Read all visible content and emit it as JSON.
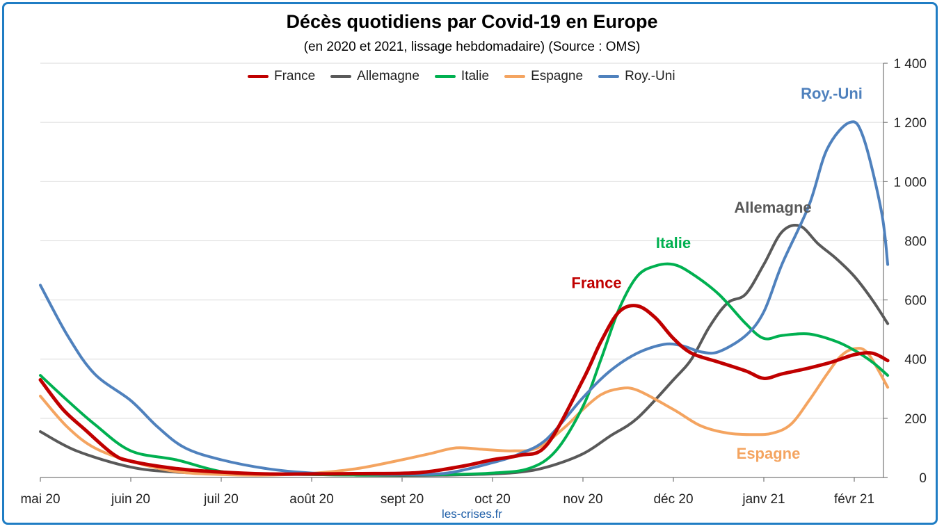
{
  "title": "Décès quotidiens par Covid-19 en Europe",
  "subtitle": "(en 2020 et 2021, lissage hebdomadaire) (Source : OMS)",
  "source_label": "les-crises.fr",
  "chart_data": {
    "type": "line",
    "title": "Décès quotidiens par Covid-19 en Europe",
    "subtitle": "(en 2020 et 2021, lissage hebdomadaire) (Source : OMS)",
    "x_ticks": [
      "mai 20",
      "juin 20",
      "juil 20",
      "août 20",
      "sept 20",
      "oct 20",
      "nov 20",
      "déc 20",
      "janv 21",
      "févr 21"
    ],
    "y_ticks": [
      "0",
      "200",
      "400",
      "600",
      "800",
      "1 000",
      "1 200",
      "1 400"
    ],
    "ylim": [
      0,
      1400
    ],
    "y_axis_side": "right",
    "grid": true,
    "legend_position": "top",
    "x_unit": "months since 1 May 2020",
    "series": [
      {
        "name": "France",
        "color": "#c00000",
        "label": "France",
        "points": [
          [
            0,
            330
          ],
          [
            0.25,
            230
          ],
          [
            0.5,
            160
          ],
          [
            0.8,
            80
          ],
          [
            1,
            55
          ],
          [
            1.5,
            30
          ],
          [
            2,
            18
          ],
          [
            2.5,
            12
          ],
          [
            3,
            12
          ],
          [
            3.5,
            13
          ],
          [
            4,
            14
          ],
          [
            4.3,
            20
          ],
          [
            4.7,
            40
          ],
          [
            5,
            60
          ],
          [
            5.3,
            75
          ],
          [
            5.6,
            110
          ],
          [
            6,
            330
          ],
          [
            6.2,
            460
          ],
          [
            6.4,
            560
          ],
          [
            6.6,
            580
          ],
          [
            6.8,
            540
          ],
          [
            7,
            470
          ],
          [
            7.2,
            420
          ],
          [
            7.5,
            390
          ],
          [
            7.8,
            360
          ],
          [
            8,
            335
          ],
          [
            8.2,
            350
          ],
          [
            8.5,
            370
          ],
          [
            8.75,
            390
          ],
          [
            9,
            415
          ],
          [
            9.2,
            420
          ],
          [
            9.37,
            395
          ]
        ]
      },
      {
        "name": "Allemagne",
        "color": "#595959",
        "label": "Allemagne",
        "points": [
          [
            0,
            155
          ],
          [
            0.4,
            90
          ],
          [
            1,
            35
          ],
          [
            1.5,
            18
          ],
          [
            2,
            14
          ],
          [
            2.5,
            12
          ],
          [
            3,
            10
          ],
          [
            3.5,
            8
          ],
          [
            4,
            7
          ],
          [
            4.5,
            8
          ],
          [
            5,
            12
          ],
          [
            5.3,
            18
          ],
          [
            5.6,
            35
          ],
          [
            6,
            80
          ],
          [
            6.3,
            140
          ],
          [
            6.6,
            200
          ],
          [
            7,
            330
          ],
          [
            7.2,
            400
          ],
          [
            7.4,
            510
          ],
          [
            7.6,
            590
          ],
          [
            7.8,
            620
          ],
          [
            8,
            720
          ],
          [
            8.2,
            830
          ],
          [
            8.4,
            850
          ],
          [
            8.6,
            790
          ],
          [
            8.8,
            740
          ],
          [
            9,
            680
          ],
          [
            9.2,
            600
          ],
          [
            9.37,
            520
          ]
        ]
      },
      {
        "name": "Italie",
        "color": "#00b050",
        "label": "Italie",
        "points": [
          [
            0,
            345
          ],
          [
            0.3,
            260
          ],
          [
            0.6,
            180
          ],
          [
            1,
            90
          ],
          [
            1.5,
            60
          ],
          [
            2,
            20
          ],
          [
            2.5,
            12
          ],
          [
            3,
            10
          ],
          [
            3.5,
            8
          ],
          [
            4,
            9
          ],
          [
            4.5,
            10
          ],
          [
            5,
            15
          ],
          [
            5.4,
            30
          ],
          [
            5.7,
            90
          ],
          [
            6,
            240
          ],
          [
            6.2,
            400
          ],
          [
            6.4,
            570
          ],
          [
            6.6,
            680
          ],
          [
            6.8,
            715
          ],
          [
            7,
            720
          ],
          [
            7.2,
            690
          ],
          [
            7.5,
            620
          ],
          [
            7.8,
            520
          ],
          [
            8,
            470
          ],
          [
            8.2,
            480
          ],
          [
            8.5,
            485
          ],
          [
            8.8,
            460
          ],
          [
            9,
            430
          ],
          [
            9.2,
            390
          ],
          [
            9.37,
            345
          ]
        ]
      },
      {
        "name": "Espagne",
        "color": "#f4a460",
        "label": "Espagne",
        "points": [
          [
            0,
            275
          ],
          [
            0.3,
            170
          ],
          [
            0.6,
            100
          ],
          [
            1,
            55
          ],
          [
            1.5,
            20
          ],
          [
            2,
            10
          ],
          [
            2.5,
            8
          ],
          [
            3,
            14
          ],
          [
            3.5,
            30
          ],
          [
            4,
            60
          ],
          [
            4.3,
            80
          ],
          [
            4.6,
            100
          ],
          [
            4.9,
            95
          ],
          [
            5.2,
            90
          ],
          [
            5.5,
            100
          ],
          [
            5.8,
            170
          ],
          [
            6,
            230
          ],
          [
            6.2,
            280
          ],
          [
            6.4,
            300
          ],
          [
            6.6,
            295
          ],
          [
            7,
            230
          ],
          [
            7.3,
            175
          ],
          [
            7.6,
            150
          ],
          [
            7.9,
            145
          ],
          [
            8.1,
            150
          ],
          [
            8.3,
            180
          ],
          [
            8.5,
            260
          ],
          [
            8.7,
            350
          ],
          [
            8.85,
            410
          ],
          [
            9,
            435
          ],
          [
            9.15,
            420
          ],
          [
            9.37,
            305
          ]
        ]
      },
      {
        "name": "Roy.-Uni",
        "color": "#4f81bd",
        "label": "Roy.-Uni",
        "points": [
          [
            0,
            650
          ],
          [
            0.3,
            480
          ],
          [
            0.6,
            350
          ],
          [
            1,
            260
          ],
          [
            1.3,
            170
          ],
          [
            1.6,
            100
          ],
          [
            2,
            60
          ],
          [
            2.5,
            30
          ],
          [
            3,
            15
          ],
          [
            3.5,
            12
          ],
          [
            4,
            10
          ],
          [
            4.5,
            15
          ],
          [
            5,
            50
          ],
          [
            5.3,
            80
          ],
          [
            5.6,
            130
          ],
          [
            6,
            270
          ],
          [
            6.3,
            360
          ],
          [
            6.6,
            420
          ],
          [
            6.9,
            450
          ],
          [
            7.1,
            445
          ],
          [
            7.3,
            425
          ],
          [
            7.5,
            425
          ],
          [
            7.8,
            480
          ],
          [
            8,
            560
          ],
          [
            8.2,
            720
          ],
          [
            8.5,
            920
          ],
          [
            8.7,
            1110
          ],
          [
            8.95,
            1200
          ],
          [
            9.1,
            1150
          ],
          [
            9.3,
            900
          ],
          [
            9.37,
            720
          ]
        ]
      }
    ]
  }
}
